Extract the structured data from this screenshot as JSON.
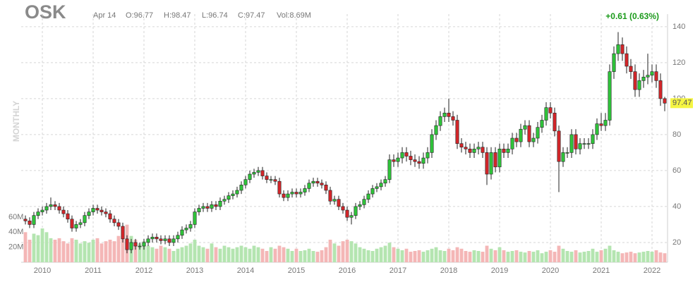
{
  "chart_data": {
    "type": "candlestick",
    "title": "OSK",
    "header": {
      "date": "Apr 14",
      "open": "O:96.77",
      "high": "H:98.47",
      "low": "L:96.74",
      "close": "C:97.47",
      "volume": "Vol:8.69M",
      "change": "+0.61 (0.63%)"
    },
    "period": "MONTHLY",
    "last_price": 97.47,
    "categories": [
      null,
      null,
      null,
      null,
      "2010",
      null,
      null,
      null,
      null,
      null,
      null,
      null,
      null,
      null,
      null,
      null,
      "2011",
      null,
      null,
      null,
      null,
      null,
      null,
      null,
      null,
      null,
      null,
      null,
      "2012",
      null,
      null,
      null,
      null,
      null,
      null,
      null,
      null,
      null,
      null,
      null,
      "2013",
      null,
      null,
      null,
      null,
      null,
      null,
      null,
      null,
      null,
      null,
      null,
      "2014",
      null,
      null,
      null,
      null,
      null,
      null,
      null,
      null,
      null,
      null,
      null,
      "2015",
      null,
      null,
      null,
      null,
      null,
      null,
      null,
      null,
      null,
      null,
      null,
      "2016",
      null,
      null,
      null,
      null,
      null,
      null,
      null,
      null,
      null,
      null,
      null,
      "2017",
      null,
      null,
      null,
      null,
      null,
      null,
      null,
      null,
      null,
      null,
      null,
      "2018",
      null,
      null,
      null,
      null,
      null,
      null,
      null,
      null,
      null,
      null,
      null,
      "2019",
      null,
      null,
      null,
      null,
      null,
      null,
      null,
      null,
      null,
      null,
      null,
      "2020",
      null,
      null,
      null,
      null,
      null,
      null,
      null,
      null,
      null,
      null,
      null,
      "2021",
      null,
      null,
      null,
      null,
      null,
      null,
      null,
      null,
      null,
      null,
      null,
      "2022",
      null,
      null,
      null
    ],
    "open": [
      33,
      32,
      30,
      35,
      37,
      38,
      40,
      41,
      40,
      38,
      36,
      33,
      28,
      30,
      31,
      35,
      37,
      39,
      38,
      37,
      36,
      33,
      31,
      29,
      22,
      16,
      20,
      18,
      18,
      20,
      22,
      23,
      22,
      21,
      22,
      20,
      22,
      24,
      27,
      28,
      30,
      37,
      39,
      40,
      39,
      41,
      40,
      43,
      44,
      46,
      47,
      49,
      52,
      55,
      58,
      59,
      60,
      57,
      55,
      55,
      54,
      47,
      45,
      47,
      48,
      47,
      48,
      50,
      53,
      54,
      53,
      52,
      49,
      43,
      44,
      40,
      38,
      34,
      35,
      40,
      41,
      44,
      47,
      50,
      51,
      53,
      55,
      66,
      65,
      67,
      70,
      68,
      66,
      65,
      64,
      67,
      70,
      80,
      85,
      90,
      92,
      90,
      88,
      75,
      73,
      72,
      70,
      72,
      73,
      70,
      58,
      70,
      62,
      72,
      70,
      72,
      78,
      76,
      83,
      85,
      76,
      78,
      84,
      88,
      95,
      92,
      82,
      65,
      70,
      70,
      80,
      72,
      75,
      75,
      75,
      80,
      86,
      85,
      88,
      115,
      125,
      130,
      125,
      118,
      115,
      105,
      110,
      112,
      113,
      115,
      110,
      100
    ],
    "high": [
      35,
      34,
      37,
      39,
      40,
      42,
      45,
      43,
      42,
      40,
      38,
      35,
      32,
      33,
      37,
      39,
      41,
      41,
      40,
      39,
      38,
      35,
      33,
      31,
      24,
      22,
      22,
      20,
      22,
      24,
      25,
      25,
      24,
      24,
      24,
      24,
      26,
      29,
      30,
      32,
      39,
      41,
      42,
      42,
      43,
      43,
      45,
      46,
      48,
      49,
      51,
      54,
      57,
      60,
      61,
      62,
      62,
      59,
      57,
      57,
      56,
      49,
      49,
      50,
      50,
      50,
      52,
      55,
      56,
      56,
      55,
      54,
      51,
      46,
      46,
      42,
      40,
      37,
      42,
      43,
      46,
      49,
      52,
      53,
      55,
      57,
      69,
      69,
      70,
      73,
      73,
      71,
      69,
      68,
      70,
      73,
      83,
      88,
      93,
      95,
      100,
      93,
      91,
      78,
      76,
      75,
      75,
      76,
      76,
      73,
      73,
      73,
      75,
      75,
      75,
      81,
      81,
      86,
      88,
      88,
      81,
      87,
      91,
      98,
      98,
      95,
      85,
      73,
      73,
      83,
      83,
      78,
      78,
      78,
      83,
      89,
      92,
      92,
      119,
      129,
      137,
      134,
      129,
      122,
      119,
      114,
      116,
      125,
      119,
      119,
      114,
      101
    ],
    "low": [
      30,
      28,
      28,
      33,
      35,
      36,
      38,
      38,
      36,
      34,
      31,
      26,
      26,
      28,
      29,
      33,
      35,
      36,
      35,
      34,
      31,
      29,
      27,
      20,
      14,
      14,
      16,
      16,
      16,
      18,
      20,
      20,
      19,
      19,
      18,
      18,
      20,
      22,
      25,
      26,
      28,
      35,
      37,
      37,
      37,
      38,
      38,
      41,
      42,
      44,
      45,
      47,
      50,
      53,
      56,
      57,
      55,
      53,
      53,
      52,
      45,
      43,
      43,
      45,
      45,
      45,
      46,
      48,
      51,
      51,
      50,
      47,
      41,
      41,
      38,
      36,
      32,
      30,
      33,
      38,
      39,
      42,
      45,
      48,
      49,
      51,
      53,
      62,
      62,
      64,
      65,
      63,
      62,
      61,
      61,
      64,
      67,
      77,
      82,
      87,
      87,
      85,
      72,
      70,
      69,
      67,
      67,
      69,
      67,
      52,
      55,
      59,
      59,
      67,
      67,
      69,
      73,
      73,
      80,
      73,
      73,
      75,
      81,
      85,
      89,
      79,
      48,
      62,
      67,
      67,
      69,
      69,
      72,
      72,
      72,
      77,
      82,
      82,
      85,
      111,
      121,
      121,
      114,
      111,
      101,
      101,
      106,
      108,
      109,
      106,
      96,
      93
    ],
    "close": [
      32,
      30,
      35,
      37,
      38,
      40,
      41,
      40,
      38,
      36,
      33,
      28,
      30,
      31,
      35,
      37,
      39,
      38,
      37,
      36,
      33,
      31,
      29,
      22,
      16,
      20,
      18,
      18,
      20,
      22,
      23,
      22,
      21,
      22,
      20,
      22,
      24,
      27,
      28,
      30,
      37,
      39,
      40,
      39,
      41,
      40,
      43,
      44,
      46,
      47,
      49,
      52,
      55,
      58,
      59,
      60,
      57,
      55,
      55,
      54,
      47,
      45,
      47,
      48,
      47,
      48,
      50,
      53,
      54,
      53,
      52,
      49,
      43,
      44,
      40,
      38,
      34,
      35,
      40,
      41,
      44,
      47,
      50,
      51,
      53,
      55,
      66,
      65,
      67,
      70,
      68,
      66,
      65,
      64,
      67,
      70,
      80,
      85,
      90,
      92,
      90,
      88,
      75,
      73,
      72,
      70,
      72,
      73,
      70,
      58,
      70,
      62,
      72,
      70,
      72,
      78,
      76,
      83,
      85,
      76,
      78,
      84,
      88,
      95,
      92,
      82,
      65,
      70,
      70,
      80,
      72,
      75,
      75,
      75,
      80,
      86,
      85,
      88,
      115,
      125,
      130,
      125,
      118,
      115,
      105,
      110,
      112,
      113,
      115,
      110,
      100,
      97.47
    ],
    "volume": [
      40,
      30,
      38,
      36,
      45,
      40,
      32,
      30,
      32,
      28,
      25,
      32,
      30,
      25,
      28,
      26,
      30,
      32,
      25,
      28,
      30,
      28,
      35,
      45,
      50,
      35,
      30,
      25,
      28,
      22,
      20,
      18,
      22,
      20,
      18,
      15,
      18,
      20,
      22,
      25,
      30,
      22,
      20,
      18,
      25,
      20,
      18,
      22,
      20,
      18,
      20,
      22,
      20,
      18,
      22,
      20,
      18,
      15,
      20,
      18,
      22,
      20,
      18,
      15,
      18,
      15,
      16,
      18,
      15,
      14,
      16,
      20,
      30,
      25,
      22,
      28,
      30,
      28,
      25,
      20,
      18,
      16,
      15,
      18,
      20,
      22,
      26,
      20,
      18,
      16,
      18,
      14,
      15,
      16,
      14,
      16,
      18,
      20,
      16,
      15,
      18,
      16,
      20,
      18,
      15,
      14,
      16,
      15,
      14,
      22,
      18,
      16,
      20,
      16,
      14,
      15,
      16,
      14,
      13,
      15,
      14,
      16,
      12,
      14,
      16,
      14,
      22,
      18,
      15,
      14,
      16,
      13,
      14,
      15,
      18,
      14,
      16,
      18,
      22,
      16,
      14,
      12,
      13,
      14,
      12,
      13,
      14,
      15,
      14,
      16,
      13,
      12
    ],
    "ylim": [
      9,
      147
    ],
    "yticks": [
      20,
      40,
      60,
      80,
      100,
      120,
      140
    ],
    "y2lim": [
      0,
      330
    ],
    "y2ticks": [
      {
        "value": 20,
        "label": "20M"
      },
      {
        "value": 40,
        "label": "40M"
      },
      {
        "value": 60,
        "label": "60M"
      }
    ],
    "up_color": "#2fc43a",
    "down_color": "#d3262a",
    "up_volume_color": "#b4e5b0",
    "down_volume_color": "#f4b6b6",
    "grid": true
  }
}
